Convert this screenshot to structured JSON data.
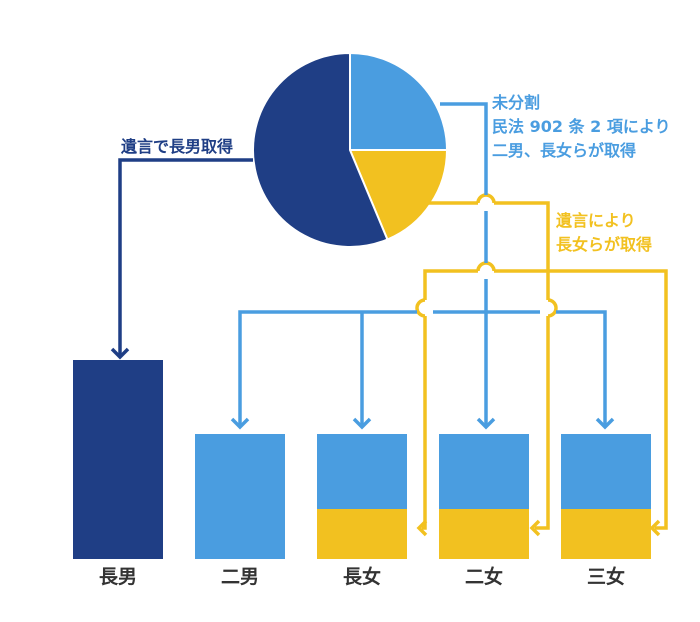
{
  "colors": {
    "eldest_son": "#1f3e85",
    "undivided": "#4a9de0",
    "will": "#f2c120",
    "background": "#ffffff"
  },
  "pie": {
    "slices": [
      {
        "label": "未分割",
        "share": 0.25,
        "color": "#4a9de0"
      },
      {
        "label": "遺言により長女らが取得",
        "share": 0.187,
        "color": "#f2c120"
      },
      {
        "label": "遺言で長男取得",
        "share": 0.563,
        "color": "#1f3e85"
      }
    ]
  },
  "annotations": {
    "will_eldest_son": "遺言で長男取得",
    "undivided_lines": [
      "未分割",
      "民法 902 条 2 項により",
      "二男、長女らが取得"
    ],
    "will_daughters_lines": [
      "遺言により",
      "長女らが取得"
    ]
  },
  "heirs": [
    {
      "label": "長男",
      "blue_fraction": 0,
      "yellow_fraction": 0,
      "navy_fraction": 1
    },
    {
      "label": "二男",
      "blue_fraction": 1,
      "yellow_fraction": 0,
      "navy_fraction": 0
    },
    {
      "label": "長女",
      "blue_fraction": 0.6,
      "yellow_fraction": 0.4,
      "navy_fraction": 0
    },
    {
      "label": "二女",
      "blue_fraction": 0.6,
      "yellow_fraction": 0.4,
      "navy_fraction": 0
    },
    {
      "label": "三女",
      "blue_fraction": 0.6,
      "yellow_fraction": 0.4,
      "navy_fraction": 0
    }
  ]
}
